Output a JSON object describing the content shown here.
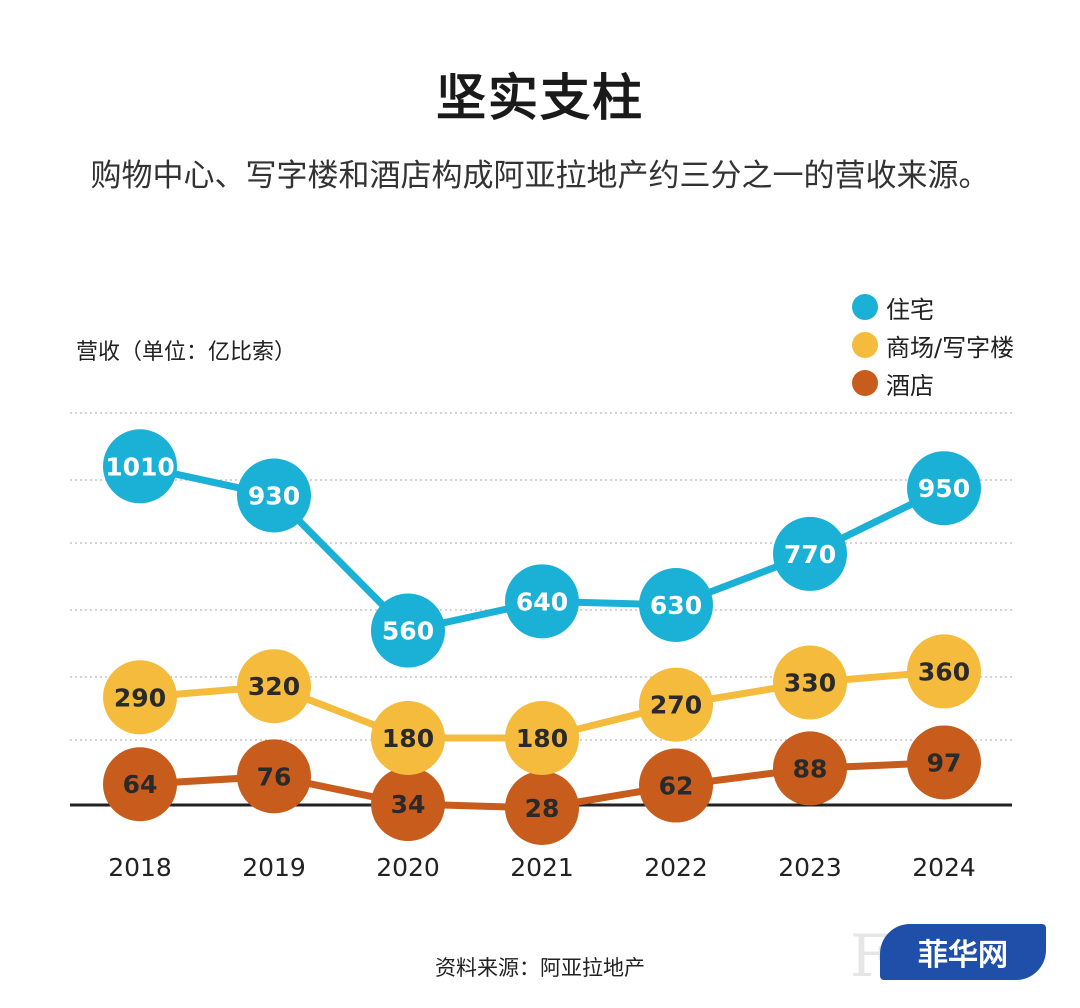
{
  "title": "坚实支柱",
  "subtitle": "购物中心、写字楼和酒店构成阿亚拉地产约三分之一的营收来源。",
  "unit_label": "营收（单位：亿比索）",
  "source": "资料来源：阿亚拉地产",
  "watermark": {
    "text": "菲华网",
    "ghost": "FOR"
  },
  "colors": {
    "residential": "#1bb0d6",
    "mall": "#f5bb3c",
    "hotel": "#c75c1c",
    "axis": "#222222",
    "grid": "#aaaaaa"
  },
  "chart_data": {
    "type": "line",
    "categories": [
      "2018",
      "2019",
      "2020",
      "2021",
      "2022",
      "2023",
      "2024"
    ],
    "series": [
      {
        "key": "residential",
        "name": "住宅",
        "values": [
          1010,
          930,
          560,
          640,
          630,
          770,
          950
        ]
      },
      {
        "key": "mall",
        "name": "商场/写字楼",
        "values": [
          290,
          320,
          180,
          180,
          270,
          330,
          360
        ]
      },
      {
        "key": "hotel",
        "name": "酒店",
        "values": [
          64,
          76,
          34,
          28,
          62,
          88,
          97
        ]
      }
    ],
    "ylabel": "营收（单位：亿比索）",
    "legend": "top-right",
    "grid": true
  }
}
